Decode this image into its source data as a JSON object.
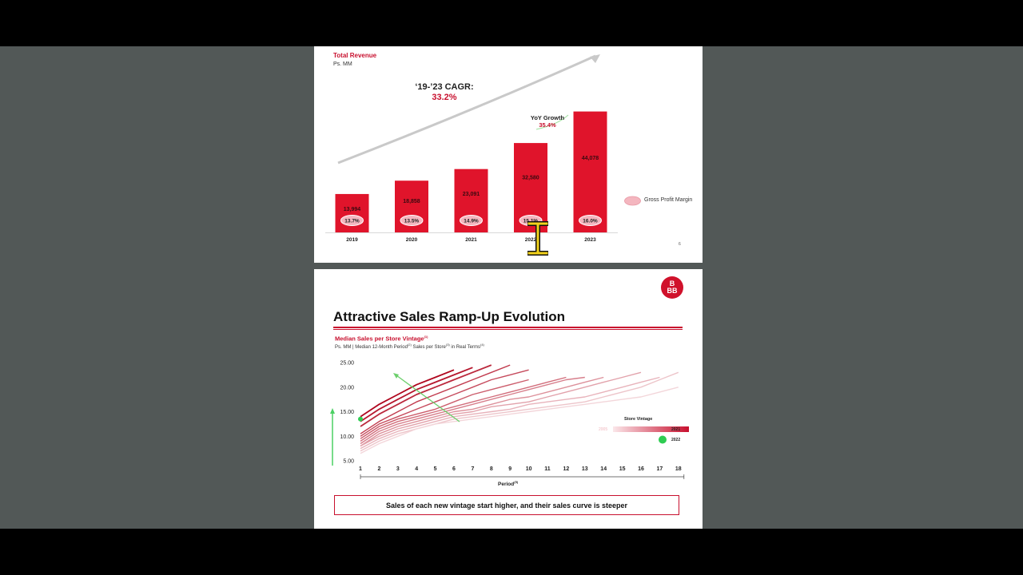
{
  "slide1": {
    "title": "Total Revenue",
    "subtitle": "Ps. MM",
    "cagr_label": "‘19-’23 CAGR:",
    "cagr_value": "33.2%",
    "yoy_label": "YoY Growth",
    "yoy_value": "35.4%",
    "legend_label": "Gross Profit Margin",
    "page_number": "6",
    "colors": {
      "bar": "#e0142b",
      "pill": "#f4b6bf",
      "accent": "#c8102e"
    }
  },
  "slide2": {
    "logo_text": "B BB",
    "title": "Attractive Sales Ramp-Up Evolution",
    "chart_title": "Median Sales per Store Vintage",
    "chart_title_sup": "(1)",
    "chart_subtitle_parts": [
      "Ps. MM | Median 12-Month Period",
      "(2)",
      " Sales per Store",
      "(3)",
      " in Real Terms",
      "(4)"
    ],
    "legend_title": "Store Vintage",
    "legend_start": "2005",
    "legend_end": "2021",
    "legend_point": "2022",
    "xlabel": "Period",
    "xlabel_sup": "(5)",
    "callout": "Sales of each new vintage start higher, and their sales curve is steeper",
    "colors": {
      "curve_dark": "#b0061e",
      "curve_light": "#f3d6da",
      "highlight": "#2ecc52"
    }
  },
  "chart_data": [
    {
      "type": "bar",
      "title": "Total Revenue",
      "ylabel": "Ps. MM",
      "categories": [
        "2019",
        "2020",
        "2021",
        "2022",
        "2023"
      ],
      "values": [
        13994,
        18858,
        23091,
        32580,
        44078
      ],
      "value_labels": [
        "13,994",
        "18,858",
        "23,091",
        "32,580",
        "44,078"
      ],
      "gross_profit_margin": [
        "13.7%",
        "13.5%",
        "14.9%",
        "15.1%",
        "16.0%"
      ],
      "ylim": [
        0,
        46000
      ],
      "legend": "right"
    },
    {
      "type": "line",
      "title": "Median Sales per Store Vintage",
      "xlabel": "Period",
      "x_ticks": [
        1,
        2,
        3,
        4,
        5,
        6,
        7,
        8,
        9,
        10,
        11,
        12,
        13,
        14,
        15,
        16,
        17,
        18
      ],
      "y_ticks": [
        "25.00",
        "20.00",
        "15.00",
        "10.00",
        "5.00"
      ],
      "ylim": [
        5,
        25
      ],
      "xlim": [
        1,
        18
      ],
      "series": [
        {
          "values": [
            14.0,
            16.5,
            18.5,
            20.5,
            22.0,
            23.5
          ]
        },
        {
          "values": [
            13.0,
            15.5,
            17.5,
            19.5,
            21.0,
            22.5,
            24.0
          ]
        },
        {
          "values": [
            12.0,
            14.5,
            16.5,
            18.5,
            20.0,
            21.5,
            23.0,
            24.5
          ]
        },
        {
          "values": [
            10.5,
            13.0,
            15.0,
            17.0,
            18.5,
            20.0,
            21.5,
            23.0,
            24.5
          ]
        },
        {
          "values": [
            10.0,
            12.5,
            14.0,
            15.5,
            17.0,
            18.5,
            20.0,
            21.5,
            22.5,
            23.5
          ]
        },
        {
          "values": [
            9.5,
            12.0,
            13.5,
            14.5,
            15.5,
            17.0,
            18.5,
            19.5,
            20.5,
            21.5
          ]
        },
        {
          "values": [
            9.0,
            11.5,
            13.0,
            14.0,
            15.0,
            16.0,
            17.0,
            18.0,
            19.0,
            20.0,
            21.0,
            22.0
          ]
        },
        {
          "values": [
            8.5,
            11.0,
            12.5,
            13.5,
            14.5,
            15.5,
            16.5,
            17.5,
            18.5,
            19.5,
            20.5,
            21.5,
            22.0
          ]
        },
        {
          "values": [
            8.0,
            10.5,
            12.0,
            13.0,
            14.0,
            15.0,
            15.5,
            16.5,
            17.5,
            18.0,
            19.0,
            20.0,
            21.0,
            22.0
          ]
        },
        {
          "values": [
            8.0,
            10.0,
            11.5,
            12.5,
            13.5,
            14.5,
            15.0,
            16.0,
            16.5,
            17.0,
            18.0,
            19.0,
            20.0,
            21.0,
            22.0,
            23.0
          ]
        },
        {
          "values": [
            7.5,
            9.5,
            11.0,
            12.0,
            13.0,
            14.0,
            14.5,
            15.0,
            15.5,
            16.5,
            17.0,
            17.5,
            18.0,
            19.0,
            20.0,
            21.0,
            22.0
          ]
        },
        {
          "values": [
            7.0,
            9.0,
            10.5,
            11.5,
            12.5,
            13.5,
            14.0,
            14.5,
            15.0,
            15.5,
            16.0,
            16.5,
            17.0,
            18.0,
            19.0,
            20.0,
            21.5,
            23.0
          ]
        },
        {
          "values": [
            6.5,
            8.5,
            10.0,
            11.5,
            12.5,
            13.0,
            13.5,
            14.0,
            14.5,
            15.0,
            15.5,
            16.0,
            16.5,
            17.0,
            17.5,
            18.0,
            19.0,
            20.0
          ]
        }
      ],
      "highlight_point": {
        "x": 1,
        "y": 13.5
      }
    }
  ]
}
